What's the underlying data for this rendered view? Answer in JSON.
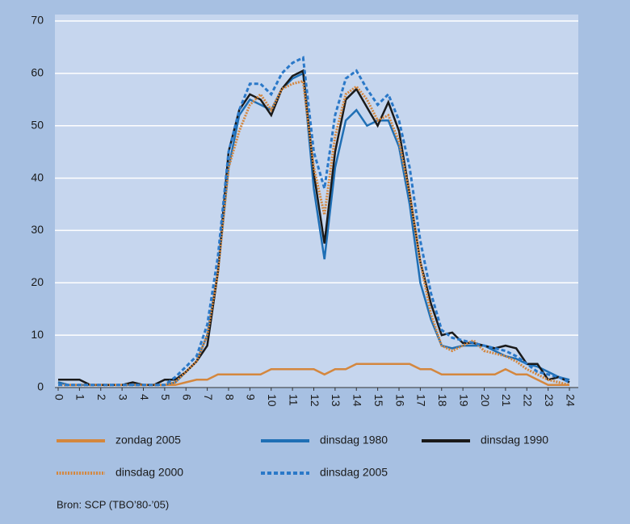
{
  "chart_data": {
    "type": "line",
    "source": "Bron: SCP (TBO’80-’05)",
    "x": [
      0,
      0.5,
      1,
      1.5,
      2,
      2.5,
      3,
      3.5,
      4,
      4.5,
      5,
      5.5,
      6,
      6.5,
      7,
      7.5,
      8,
      8.5,
      9,
      9.5,
      10,
      10.5,
      11,
      11.5,
      12,
      12.5,
      13,
      13.5,
      14,
      14.5,
      15,
      15.5,
      16,
      16.5,
      17,
      17.5,
      18,
      18.5,
      19,
      19.5,
      20,
      20.5,
      21,
      21.5,
      22,
      22.5,
      23,
      23.5,
      24
    ],
    "xlim": [
      0,
      24
    ],
    "xticks": [
      0,
      1,
      2,
      3,
      4,
      5,
      6,
      7,
      8,
      9,
      10,
      11,
      12,
      13,
      14,
      15,
      16,
      17,
      18,
      19,
      20,
      21,
      22,
      23,
      24
    ],
    "ylim": [
      0,
      70
    ],
    "yticks": [
      0,
      10,
      20,
      30,
      40,
      50,
      60,
      70
    ],
    "grid": true,
    "series": [
      {
        "name": "zondag 2005",
        "color": "#d4873e",
        "style": "solid",
        "values": [
          1,
          0.5,
          0.5,
          0.5,
          0.5,
          0.5,
          0.5,
          0.5,
          0.5,
          0.5,
          0.5,
          0.5,
          1,
          1.5,
          1.5,
          2.5,
          2.5,
          2.5,
          2.5,
          2.5,
          3.5,
          3.5,
          3.5,
          3.5,
          3.5,
          2.5,
          3.5,
          3.5,
          4.5,
          4.5,
          4.5,
          4.5,
          4.5,
          4.5,
          3.5,
          3.5,
          2.5,
          2.5,
          2.5,
          2.5,
          2.5,
          2.5,
          3.5,
          2.5,
          2.5,
          1.5,
          0.5,
          0.5,
          0.5
        ]
      },
      {
        "name": "dinsdag 1980",
        "color": "#1f6fb5",
        "style": "solid",
        "values": [
          1,
          0.5,
          0.5,
          0.5,
          0.5,
          0.5,
          0.5,
          0.5,
          0.5,
          0.5,
          0.5,
          1,
          3,
          5,
          10,
          22,
          42,
          52,
          55,
          54,
          53,
          57,
          59,
          60,
          38,
          24.5,
          42,
          51,
          53,
          50,
          51,
          51,
          46,
          35,
          20,
          13,
          8,
          7.5,
          8,
          8,
          8,
          7,
          6,
          5.5,
          4.5,
          4,
          3,
          2,
          1.5
        ]
      },
      {
        "name": "dinsdag 1990",
        "color": "#1a1a1a",
        "style": "solid",
        "values": [
          1.5,
          1.5,
          1.5,
          0.5,
          0.5,
          0.5,
          0.5,
          1,
          0.5,
          0.5,
          1.5,
          1.5,
          3,
          5,
          8,
          22,
          45,
          53,
          56,
          55,
          52,
          57,
          59.5,
          60.5,
          41,
          27.5,
          45,
          55,
          57,
          53.5,
          50,
          54.5,
          49,
          37,
          24,
          16,
          10,
          10.5,
          8.5,
          8.5,
          8,
          7.5,
          8,
          7.5,
          4.5,
          4.5,
          1.5,
          2,
          1
        ]
      },
      {
        "name": "dinsdag 2000",
        "color": "#d4873e",
        "style": "dotted",
        "values": [
          0.5,
          0.5,
          0.5,
          0.5,
          0.5,
          0.5,
          0.5,
          0.5,
          0.5,
          0.5,
          0.5,
          1,
          3,
          5,
          10,
          22,
          42,
          49,
          54,
          56,
          53,
          57,
          58,
          58.5,
          42,
          33,
          48,
          56,
          57.5,
          55,
          51,
          52,
          47,
          37,
          24,
          14,
          8,
          7,
          8,
          9,
          7,
          6.5,
          6,
          5,
          3.5,
          2.5,
          1.5,
          1,
          0.5
        ]
      },
      {
        "name": "dinsdag 2005",
        "color": "#2a78c8",
        "style": "dashed",
        "values": [
          0.5,
          0.5,
          0.5,
          0.5,
          0.5,
          0.5,
          0.5,
          0.5,
          0.5,
          0.5,
          0.5,
          2,
          4,
          6,
          12,
          25,
          45,
          53,
          58,
          58,
          56,
          60,
          62,
          63,
          45,
          38,
          52,
          59,
          60.5,
          57,
          54,
          56,
          51,
          42,
          28,
          18,
          11,
          9.5,
          9,
          8.5,
          8,
          7.5,
          7,
          6,
          4.5,
          3,
          2.5,
          2,
          1
        ]
      }
    ]
  }
}
